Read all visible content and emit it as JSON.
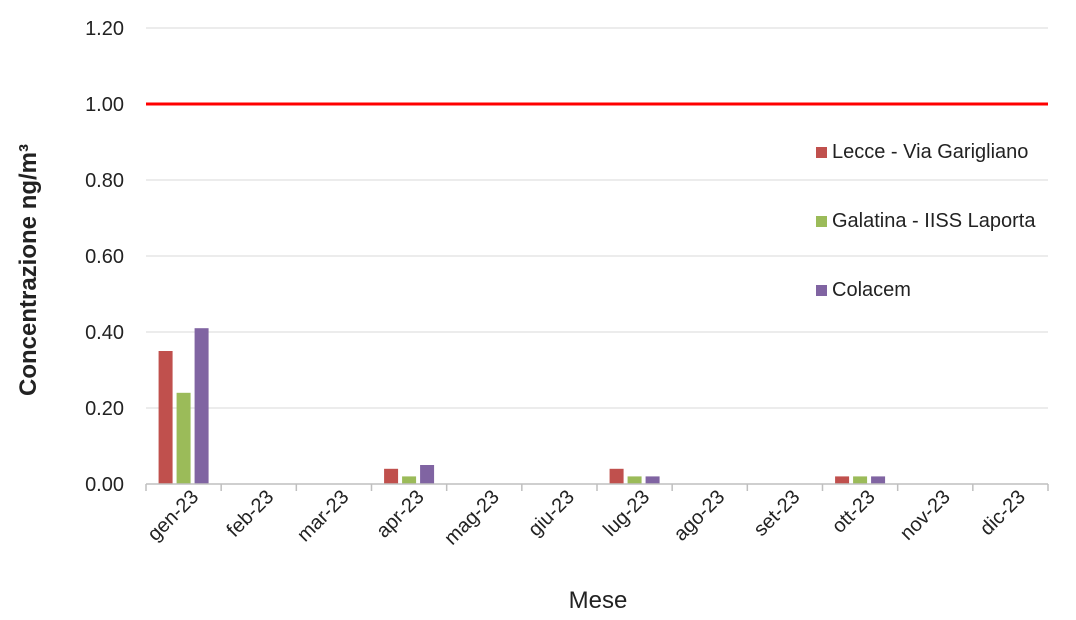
{
  "chart_data": {
    "type": "bar",
    "title": "",
    "xlabel": "Mese",
    "ylabel": "Concentrazione ng/m³",
    "categories": [
      "gen-23",
      "feb-23",
      "mar-23",
      "apr-23",
      "mag-23",
      "giu-23",
      "lug-23",
      "ago-23",
      "set-23",
      "ott-23",
      "nov-23",
      "dic-23"
    ],
    "series": [
      {
        "name": "Lecce - Via Garigliano",
        "color": "#c0504d",
        "values": [
          0.35,
          0,
          0,
          0.04,
          0,
          0,
          0.04,
          0,
          0,
          0.02,
          0,
          0
        ]
      },
      {
        "name": "Galatina - IISS Laporta",
        "color": "#9bbb59",
        "values": [
          0.24,
          0,
          0,
          0.02,
          0,
          0,
          0.02,
          0,
          0,
          0.02,
          0,
          0
        ]
      },
      {
        "name": "Colacem",
        "color": "#8064a2",
        "values": [
          0.41,
          0,
          0,
          0.05,
          0,
          0,
          0.02,
          0,
          0,
          0.02,
          0,
          0
        ]
      }
    ],
    "reference_line": {
      "value": 1.0,
      "color": "#ff0000"
    },
    "ylim": [
      0,
      1.2
    ],
    "yticks": [
      "0.00",
      "0.20",
      "0.40",
      "0.60",
      "0.80",
      "1.00",
      "1.20"
    ],
    "grid": true,
    "legend_position": "right"
  }
}
